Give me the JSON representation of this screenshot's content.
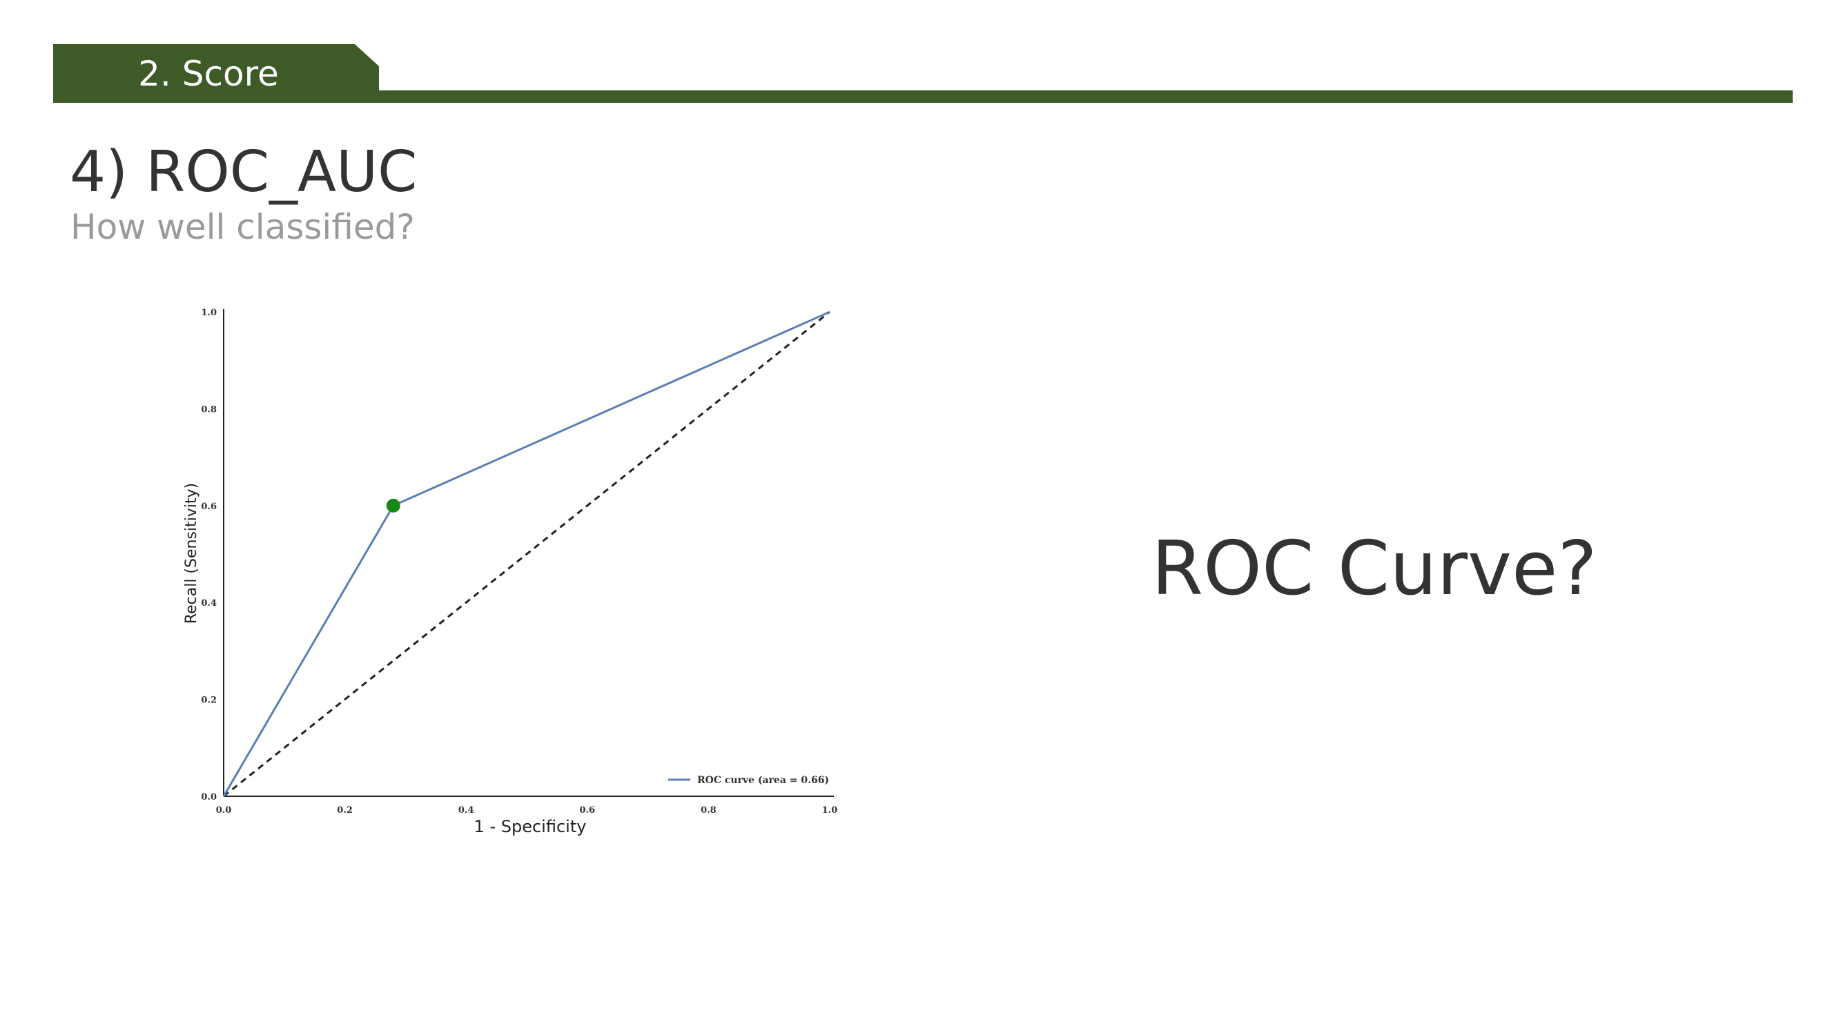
{
  "section": {
    "label": "2. Score"
  },
  "heading": {
    "title": "4) ROC_AUC",
    "subtitle": "How well classified?"
  },
  "side_text": "ROC Curve?",
  "colors": {
    "accent": "#3d5a27",
    "curve": "#5a7fb5",
    "marker": "#138a13",
    "diagonal": "#222222"
  },
  "chart_data": {
    "type": "line",
    "xlabel": "1 - Specificity",
    "ylabel": "Recall (Sensitivity)",
    "xlim": [
      0,
      1
    ],
    "ylim": [
      0,
      1
    ],
    "xticks": [
      "0.0",
      "0.2",
      "0.4",
      "0.6",
      "0.8",
      "1.0"
    ],
    "yticks": [
      "0.0",
      "0.2",
      "0.4",
      "0.6",
      "0.8",
      "1.0"
    ],
    "grid": false,
    "legend_position": "bottom-right",
    "series": [
      {
        "name": "ROC curve (area = 0.66)",
        "x": [
          0.0,
          0.28,
          1.0
        ],
        "y": [
          0.0,
          0.6,
          1.0
        ]
      }
    ],
    "reference_line": {
      "x": [
        0,
        1
      ],
      "y": [
        0,
        1
      ],
      "style": "dashed"
    },
    "highlight_point": {
      "x": 0.28,
      "y": 0.6
    }
  }
}
